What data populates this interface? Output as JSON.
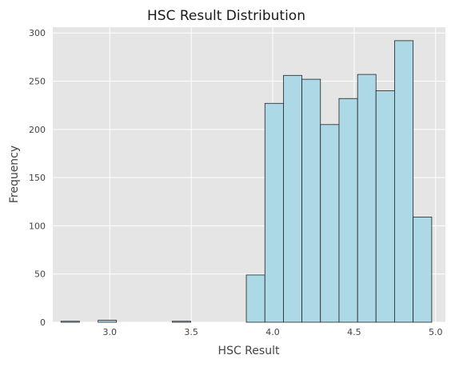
{
  "chart_data": {
    "type": "bar",
    "title": "HSC Result Distribution",
    "xlabel": "HSC Result",
    "ylabel": "Frequency",
    "xlim": [
      2.65,
      5.06
    ],
    "ylim": [
      0,
      306
    ],
    "xticks": [
      3.0,
      3.5,
      4.0,
      4.5,
      5.0
    ],
    "xtick_labels": [
      "3.0",
      "3.5",
      "4.0",
      "4.5",
      "5.0"
    ],
    "yticks": [
      0,
      50,
      100,
      150,
      200,
      250,
      300
    ],
    "ytick_labels": [
      "0",
      "50",
      "100",
      "150",
      "200",
      "250",
      "300"
    ],
    "grid": true,
    "legend": "none",
    "bin_width": 0.1138,
    "bins": [
      {
        "x0": 2.7,
        "x1": 2.814,
        "count": 1
      },
      {
        "x0": 2.814,
        "x1": 2.928,
        "count": 0
      },
      {
        "x0": 2.928,
        "x1": 3.041,
        "count": 2
      },
      {
        "x0": 3.041,
        "x1": 3.155,
        "count": 0
      },
      {
        "x0": 3.155,
        "x1": 3.269,
        "count": 0
      },
      {
        "x0": 3.269,
        "x1": 3.383,
        "count": 0
      },
      {
        "x0": 3.383,
        "x1": 3.497,
        "count": 1
      },
      {
        "x0": 3.497,
        "x1": 3.61,
        "count": 0
      },
      {
        "x0": 3.61,
        "x1": 3.724,
        "count": 0
      },
      {
        "x0": 3.724,
        "x1": 3.838,
        "count": 0
      },
      {
        "x0": 3.838,
        "x1": 3.952,
        "count": 49
      },
      {
        "x0": 3.952,
        "x1": 4.066,
        "count": 227
      },
      {
        "x0": 4.066,
        "x1": 4.179,
        "count": 256
      },
      {
        "x0": 4.179,
        "x1": 4.293,
        "count": 252
      },
      {
        "x0": 4.293,
        "x1": 4.407,
        "count": 205
      },
      {
        "x0": 4.407,
        "x1": 4.521,
        "count": 232
      },
      {
        "x0": 4.521,
        "x1": 4.634,
        "count": 257
      },
      {
        "x0": 4.634,
        "x1": 4.748,
        "count": 240
      },
      {
        "x0": 4.748,
        "x1": 4.862,
        "count": 292
      },
      {
        "x0": 4.862,
        "x1": 4.976,
        "count": 109
      }
    ],
    "colors": {
      "bar_fill": "#add8e6",
      "bar_edge": "#222222",
      "plot_bg": "#e5e5e5",
      "grid": "#ffffff"
    }
  }
}
